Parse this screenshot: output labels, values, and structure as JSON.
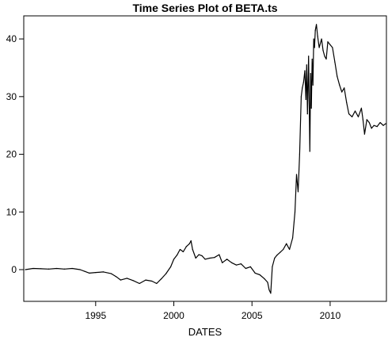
{
  "chart_data": {
    "type": "line",
    "title": "Time Series Plot of BETA.ts",
    "xlabel": "DATES",
    "ylabel": "",
    "xlim": [
      1990.4,
      2013.6
    ],
    "ylim": [
      -5.5,
      44
    ],
    "x_ticks": [
      1995,
      2000,
      2005,
      2010
    ],
    "y_ticks": [
      0,
      10,
      20,
      30,
      40
    ],
    "grid": false,
    "series": [
      {
        "x": [
          1990.5,
          1991.0,
          1991.5,
          1992.0,
          1992.5,
          1993.0,
          1993.5,
          1994.0,
          1994.3,
          1994.6,
          1995.0,
          1995.5,
          1996.0,
          1996.3,
          1996.6,
          1997.0,
          1997.4,
          1997.8,
          1998.2,
          1998.6,
          1998.9,
          1999.2,
          1999.5,
          1999.8,
          2000.0,
          2000.2,
          2000.4,
          2000.6,
          2000.8,
          2001.0,
          2001.1,
          2001.2,
          2001.4,
          2001.6,
          2001.8,
          2002.0,
          2002.3,
          2002.6,
          2002.9,
          2003.1,
          2003.4,
          2003.7,
          2004.0,
          2004.3,
          2004.6,
          2004.9,
          2005.2,
          2005.5,
          2005.8,
          2006.0,
          2006.1,
          2006.2,
          2006.3,
          2006.45,
          2006.6,
          2006.8,
          2007.0,
          2007.2,
          2007.4,
          2007.6,
          2007.75,
          2007.85,
          2007.95,
          2008.05,
          2008.15,
          2008.22,
          2008.3,
          2008.38,
          2008.45,
          2008.5,
          2008.55,
          2008.62,
          2008.7,
          2008.75,
          2008.8,
          2008.85,
          2008.9,
          2008.95,
          2009.0,
          2009.05,
          2009.12,
          2009.2,
          2009.3,
          2009.45,
          2009.55,
          2009.65,
          2009.75,
          2009.85,
          2010.0,
          2010.15,
          2010.3,
          2010.45,
          2010.6,
          2010.75,
          2010.9,
          2011.05,
          2011.2,
          2011.4,
          2011.6,
          2011.8,
          2012.0,
          2012.1,
          2012.2,
          2012.35,
          2012.5,
          2012.65,
          2012.8,
          2013.0,
          2013.2,
          2013.4,
          2013.55
        ],
        "values": [
          0.0,
          0.2,
          0.15,
          0.1,
          0.2,
          0.1,
          0.2,
          0.0,
          -0.3,
          -0.6,
          -0.5,
          -0.4,
          -0.7,
          -1.2,
          -1.8,
          -1.5,
          -1.9,
          -2.4,
          -1.8,
          -2.0,
          -2.4,
          -1.6,
          -0.7,
          0.5,
          1.8,
          2.5,
          3.5,
          3.1,
          4.0,
          4.5,
          5.0,
          3.5,
          2.0,
          2.6,
          2.4,
          1.8,
          2.0,
          2.1,
          2.6,
          1.2,
          1.8,
          1.2,
          0.8,
          1.0,
          0.2,
          0.5,
          -0.6,
          -0.9,
          -1.6,
          -2.2,
          -3.5,
          -4.1,
          0.5,
          2.0,
          2.5,
          3.0,
          3.5,
          4.5,
          3.5,
          5.5,
          10.0,
          16.5,
          13.5,
          20.0,
          30.0,
          31.5,
          32.5,
          34.5,
          29.5,
          35.5,
          27.0,
          37.0,
          20.5,
          34.0,
          28.0,
          36.5,
          32.0,
          40.0,
          38.5,
          41.5,
          42.5,
          40.5,
          38.5,
          40.0,
          38.0,
          37.0,
          36.5,
          39.5,
          39.0,
          38.5,
          36.0,
          33.5,
          32.0,
          30.8,
          31.5,
          29.0,
          27.0,
          26.5,
          27.5,
          26.5,
          28.0,
          26.0,
          23.5,
          26.0,
          25.5,
          24.5,
          25.0,
          24.8,
          25.5,
          25.0,
          25.3
        ]
      }
    ]
  }
}
